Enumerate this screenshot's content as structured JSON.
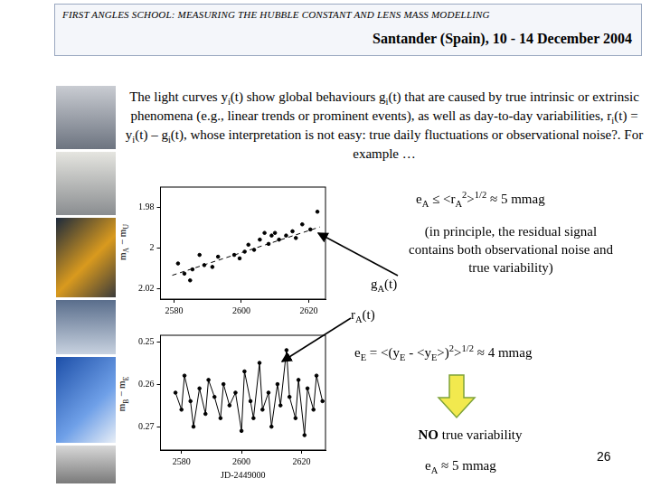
{
  "header": {
    "title": "FIRST ANGLES SCHOOL: MEASURING THE HUBBLE CONSTANT AND LENS MASS MODELLING",
    "subtitle": "Santander (Spain), 10 - 14 December 2004"
  },
  "intro": [
    {
      "text": "The light curves y"
    },
    {
      "sub": "i"
    },
    {
      "text": "(t) show global behaviours g"
    },
    {
      "sub": "i"
    },
    {
      "text": "(t) that are caused by true intrinsic or extrinsic phenomena (e.g., linear trends or prominent events), as well as day-to-day variabilities, r"
    },
    {
      "sub": "i"
    },
    {
      "text": "(t) = y"
    },
    {
      "sub": "i"
    },
    {
      "text": "(t) – g"
    },
    {
      "sub": "i"
    },
    {
      "text": "(t), whose interpretation is not easy: true daily fluctuations or observational noise?. For example …"
    }
  ],
  "chart_data": [
    {
      "type": "scatter",
      "y_label": [
        {
          "text": "m"
        },
        {
          "sub": "A"
        },
        {
          "text": " − m"
        },
        {
          "sub": "U"
        }
      ],
      "xlim": [
        2576,
        2625
      ],
      "xticks": [
        2580,
        2600,
        2620
      ],
      "ylim": [
        2.025,
        1.97
      ],
      "yticks": [
        1.98,
        2,
        2.02
      ],
      "grid": false,
      "series": [
        {
          "type": "scatter",
          "color": "#000000",
          "marker": "circle",
          "line_style": "none",
          "x": [
            2581.2,
            2583.1,
            2584.8,
            2585.5,
            2587.6,
            2589,
            2591.4,
            2593.1,
            2597.9,
            2599.5,
            2601,
            2602.1,
            2603.8,
            2605.5,
            2606.9,
            2608.1,
            2609,
            2610,
            2611.2,
            2613.3,
            2615.2,
            2616.2,
            2618.1,
            2620.5,
            2622.6
          ],
          "values": [
            2.0075,
            2.0125,
            2.0158,
            2.0104,
            2.0033,
            2.0083,
            2.0092,
            2.0042,
            2.0033,
            2.005,
            2.0017,
            1.9983,
            2.0008,
            1.9958,
            1.9925,
            1.9979,
            1.9938,
            1.9925,
            1.9958,
            1.9938,
            1.9917,
            1.995,
            1.9883,
            1.9908,
            1.9821
          ]
        },
        {
          "type": "line",
          "color": "#000000",
          "marker": "none",
          "line_style": "dashed",
          "x": [
            2579.5,
            2623.3
          ],
          "values": [
            2.0133,
            1.9896
          ]
        }
      ]
    },
    {
      "type": "line",
      "y_label": [
        {
          "text": "m"
        },
        {
          "sub": "B"
        },
        {
          "text": " − m"
        },
        {
          "sub": "E"
        }
      ],
      "x_label": "JD-2449000",
      "xlim": [
        2573,
        2628
      ],
      "xticks": [
        2580,
        2600,
        2620
      ],
      "ylim": [
        0.2755,
        0.2485
      ],
      "yticks": [
        0.25,
        0.26,
        0.27
      ],
      "grid": false,
      "series": [
        {
          "type": "line",
          "color": "#000000",
          "marker": "circle",
          "line_style": "solid",
          "x": [
            2578,
            2580,
            2581,
            2583,
            2584,
            2586,
            2588,
            2589,
            2591,
            2593,
            2594,
            2596,
            2598,
            2600,
            2601,
            2603,
            2604,
            2606,
            2607,
            2609,
            2610,
            2612,
            2613,
            2615,
            2616,
            2618,
            2619,
            2621,
            2622,
            2624,
            2625,
            2627
          ],
          "values": [
            0.262,
            0.266,
            0.258,
            0.264,
            0.27,
            0.261,
            0.267,
            0.259,
            0.263,
            0.268,
            0.26,
            0.265,
            0.262,
            0.271,
            0.257,
            0.264,
            0.268,
            0.255,
            0.266,
            0.262,
            0.27,
            0.26,
            0.265,
            0.252,
            0.263,
            0.268,
            0.259,
            0.272,
            0.261,
            0.266,
            0.258,
            0.264
          ]
        }
      ]
    }
  ],
  "annotations": {
    "e_A": [
      {
        "text": "e"
      },
      {
        "sub": "A"
      },
      {
        "text": " ≤ <r"
      },
      {
        "sub": "A"
      },
      {
        "sup": "2"
      },
      {
        "text": ">"
      },
      {
        "sup": "1/2"
      },
      {
        "text": " ≈ 5 mmag"
      }
    ],
    "note": [
      {
        "text": "(in principle, the residual signal contains both observational noise and true variability)"
      }
    ],
    "g_label": [
      {
        "text": "g"
      },
      {
        "sub": "A"
      },
      {
        "text": "(t)"
      }
    ],
    "r_label": [
      {
        "text": "r"
      },
      {
        "sub": "A"
      },
      {
        "text": "(t)"
      }
    ],
    "e_E": [
      {
        "text": "e"
      },
      {
        "sub": "E"
      },
      {
        "text": " = <(y"
      },
      {
        "sub": "E"
      },
      {
        "text": " - <y"
      },
      {
        "sub": "E"
      },
      {
        "text": ">)"
      },
      {
        "sup": "2"
      },
      {
        "text": ">"
      },
      {
        "sup": "1/2"
      },
      {
        "text": " ≈ 4 mmag"
      }
    ],
    "conclusion": [
      {
        "bold": "NO"
      },
      {
        "text": " true variability"
      }
    ],
    "e_A_final": [
      {
        "text": "e"
      },
      {
        "sub": "A"
      },
      {
        "text": " ≈ 5 mmag"
      }
    ]
  },
  "page_number": 26
}
